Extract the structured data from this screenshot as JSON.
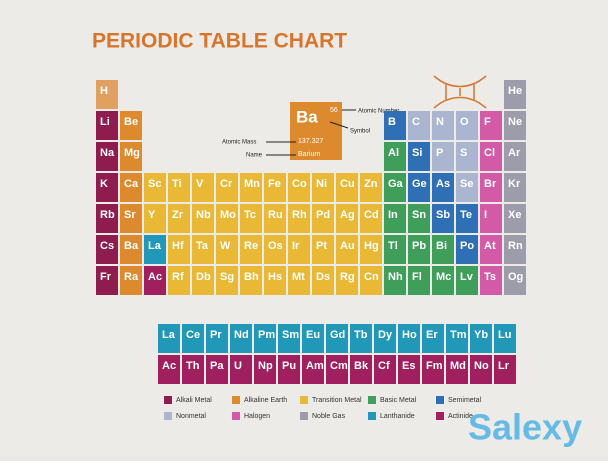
{
  "header": {
    "title": "PERIODIC TABLE CHART"
  },
  "key": {
    "symbol": "Ba",
    "number": "56",
    "mass": "137.327",
    "name": "Barium",
    "color": "#dd8a2e",
    "labels": {
      "number": "Atomic Number",
      "symbol": "Symbol",
      "mass": "Atomic Mass",
      "name": "Name"
    }
  },
  "table": {
    "rows": [
      [
        {
          "symbol": "H",
          "color": "#e0a060"
        },
        null,
        null,
        null,
        null,
        null,
        null,
        null,
        null,
        null,
        null,
        null,
        null,
        null,
        null,
        null,
        null,
        {
          "symbol": "He",
          "color": "#9c9cab"
        }
      ],
      [
        {
          "symbol": "Li",
          "color": "#8e1c4e"
        },
        {
          "symbol": "Be",
          "color": "#dd8a2e"
        },
        null,
        null,
        null,
        null,
        null,
        null,
        null,
        null,
        null,
        null,
        {
          "symbol": "B",
          "color": "#2f6fb5"
        },
        {
          "symbol": "C",
          "color": "#aab6cf"
        },
        {
          "symbol": "N",
          "color": "#aab6cf"
        },
        {
          "symbol": "O",
          "color": "#aab6cf"
        },
        {
          "symbol": "F",
          "color": "#d35aa6"
        },
        {
          "symbol": "Ne",
          "color": "#9c9cab"
        }
      ],
      [
        {
          "symbol": "Na",
          "color": "#8e1c4e"
        },
        {
          "symbol": "Mg",
          "color": "#dd8a2e"
        },
        null,
        null,
        null,
        null,
        null,
        null,
        null,
        null,
        null,
        null,
        {
          "symbol": "Al",
          "color": "#3f9e5a"
        },
        {
          "symbol": "Si",
          "color": "#2f6fb5"
        },
        {
          "symbol": "P",
          "color": "#aab6cf"
        },
        {
          "symbol": "S",
          "color": "#aab6cf"
        },
        {
          "symbol": "Cl",
          "color": "#d35aa6"
        },
        {
          "symbol": "Ar",
          "color": "#9c9cab"
        }
      ],
      [
        {
          "symbol": "K",
          "color": "#8e1c4e"
        },
        {
          "symbol": "Ca",
          "color": "#dd8a2e"
        },
        {
          "symbol": "Sc",
          "color": "#e9b834"
        },
        {
          "symbol": "Ti",
          "color": "#e9b834"
        },
        {
          "symbol": "V",
          "color": "#e9b834"
        },
        {
          "symbol": "Cr",
          "color": "#e9b834"
        },
        {
          "symbol": "Mn",
          "color": "#e9b834"
        },
        {
          "symbol": "Fe",
          "color": "#e9b834"
        },
        {
          "symbol": "Co",
          "color": "#e9b834"
        },
        {
          "symbol": "Ni",
          "color": "#e9b834"
        },
        {
          "symbol": "Cu",
          "color": "#e9b834"
        },
        {
          "symbol": "Zn",
          "color": "#e9b834"
        },
        {
          "symbol": "Ga",
          "color": "#3f9e5a"
        },
        {
          "symbol": "Ge",
          "color": "#2f6fb5"
        },
        {
          "symbol": "As",
          "color": "#2f6fb5"
        },
        {
          "symbol": "Se",
          "color": "#aab6cf"
        },
        {
          "symbol": "Br",
          "color": "#d35aa6"
        },
        {
          "symbol": "Kr",
          "color": "#9c9cab"
        }
      ],
      [
        {
          "symbol": "Rb",
          "color": "#8e1c4e"
        },
        {
          "symbol": "Sr",
          "color": "#dd8a2e"
        },
        {
          "symbol": "Y",
          "color": "#e9b834"
        },
        {
          "symbol": "Zr",
          "color": "#e9b834"
        },
        {
          "symbol": "Nb",
          "color": "#e9b834"
        },
        {
          "symbol": "Mo",
          "color": "#e9b834"
        },
        {
          "symbol": "Tc",
          "color": "#e9b834"
        },
        {
          "symbol": "Ru",
          "color": "#e9b834"
        },
        {
          "symbol": "Rh",
          "color": "#e9b834"
        },
        {
          "symbol": "Pd",
          "color": "#e9b834"
        },
        {
          "symbol": "Ag",
          "color": "#e9b834"
        },
        {
          "symbol": "Cd",
          "color": "#e9b834"
        },
        {
          "symbol": "In",
          "color": "#3f9e5a"
        },
        {
          "symbol": "Sn",
          "color": "#3f9e5a"
        },
        {
          "symbol": "Sb",
          "color": "#2f6fb5"
        },
        {
          "symbol": "Te",
          "color": "#2f6fb5"
        },
        {
          "symbol": "I",
          "color": "#d35aa6"
        },
        {
          "symbol": "Xe",
          "color": "#9c9cab"
        }
      ],
      [
        {
          "symbol": "Cs",
          "color": "#8e1c4e"
        },
        {
          "symbol": "Ba",
          "color": "#dd8a2e"
        },
        {
          "symbol": "La",
          "color": "#2198b8"
        },
        {
          "symbol": "Hf",
          "color": "#e9b834"
        },
        {
          "symbol": "Ta",
          "color": "#e9b834"
        },
        {
          "symbol": "W",
          "color": "#e9b834"
        },
        {
          "symbol": "Re",
          "color": "#e9b834"
        },
        {
          "symbol": "Os",
          "color": "#e9b834"
        },
        {
          "symbol": "Ir",
          "color": "#e9b834"
        },
        {
          "symbol": "Pt",
          "color": "#e9b834"
        },
        {
          "symbol": "Au",
          "color": "#e9b834"
        },
        {
          "symbol": "Hg",
          "color": "#e9b834"
        },
        {
          "symbol": "Tl",
          "color": "#3f9e5a"
        },
        {
          "symbol": "Pb",
          "color": "#3f9e5a"
        },
        {
          "symbol": "Bi",
          "color": "#3f9e5a"
        },
        {
          "symbol": "Po",
          "color": "#2f6fb5"
        },
        {
          "symbol": "At",
          "color": "#d35aa6"
        },
        {
          "symbol": "Rn",
          "color": "#9c9cab"
        }
      ],
      [
        {
          "symbol": "Fr",
          "color": "#8e1c4e"
        },
        {
          "symbol": "Ra",
          "color": "#dd8a2e"
        },
        {
          "symbol": "Ac",
          "color": "#a01f5e"
        },
        {
          "symbol": "Rf",
          "color": "#e9b834"
        },
        {
          "symbol": "Db",
          "color": "#e9b834"
        },
        {
          "symbol": "Sg",
          "color": "#e9b834"
        },
        {
          "symbol": "Bh",
          "color": "#e9b834"
        },
        {
          "symbol": "Hs",
          "color": "#e9b834"
        },
        {
          "symbol": "Mt",
          "color": "#e9b834"
        },
        {
          "symbol": "Ds",
          "color": "#e9b834"
        },
        {
          "symbol": "Rg",
          "color": "#e9b834"
        },
        {
          "symbol": "Cn",
          "color": "#e9b834"
        },
        {
          "symbol": "Nh",
          "color": "#3f9e5a"
        },
        {
          "symbol": "Fl",
          "color": "#3f9e5a"
        },
        {
          "symbol": "Mc",
          "color": "#3f9e5a"
        },
        {
          "symbol": "Lv",
          "color": "#3f9e5a"
        },
        {
          "symbol": "Ts",
          "color": "#d35aa6"
        },
        {
          "symbol": "Og",
          "color": "#9c9cab"
        }
      ]
    ],
    "f_rows": [
      [
        {
          "symbol": "La",
          "color": "#2198b8"
        },
        {
          "symbol": "Ce",
          "color": "#2198b8"
        },
        {
          "symbol": "Pr",
          "color": "#2198b8"
        },
        {
          "symbol": "Nd",
          "color": "#2198b8"
        },
        {
          "symbol": "Pm",
          "color": "#2198b8"
        },
        {
          "symbol": "Sm",
          "color": "#2198b8"
        },
        {
          "symbol": "Eu",
          "color": "#2198b8"
        },
        {
          "symbol": "Gd",
          "color": "#2198b8"
        },
        {
          "symbol": "Tb",
          "color": "#2198b8"
        },
        {
          "symbol": "Dy",
          "color": "#2198b8"
        },
        {
          "symbol": "Ho",
          "color": "#2198b8"
        },
        {
          "symbol": "Er",
          "color": "#2198b8"
        },
        {
          "symbol": "Tm",
          "color": "#2198b8"
        },
        {
          "symbol": "Yb",
          "color": "#2198b8"
        },
        {
          "symbol": "Lu",
          "color": "#2198b8"
        }
      ],
      [
        {
          "symbol": "Ac",
          "color": "#a01f5e"
        },
        {
          "symbol": "Th",
          "color": "#a01f5e"
        },
        {
          "symbol": "Pa",
          "color": "#a01f5e"
        },
        {
          "symbol": "U",
          "color": "#a01f5e"
        },
        {
          "symbol": "Np",
          "color": "#a01f5e"
        },
        {
          "symbol": "Pu",
          "color": "#a01f5e"
        },
        {
          "symbol": "Am",
          "color": "#a01f5e"
        },
        {
          "symbol": "Cm",
          "color": "#a01f5e"
        },
        {
          "symbol": "Bk",
          "color": "#a01f5e"
        },
        {
          "symbol": "Cf",
          "color": "#a01f5e"
        },
        {
          "symbol": "Es",
          "color": "#a01f5e"
        },
        {
          "symbol": "Fm",
          "color": "#a01f5e"
        },
        {
          "symbol": "Md",
          "color": "#a01f5e"
        },
        {
          "symbol": "No",
          "color": "#a01f5e"
        },
        {
          "symbol": "Lr",
          "color": "#a01f5e"
        }
      ]
    ]
  },
  "legend": [
    {
      "label": "Alkali Metal",
      "color": "#8e1c4e"
    },
    {
      "label": "Nonmetal",
      "color": "#aab6cf"
    },
    {
      "label": "Alkaline Earth",
      "color": "#dd8a2e"
    },
    {
      "label": "Halogen",
      "color": "#d35aa6"
    },
    {
      "label": "Transition Metal",
      "color": "#e9b834"
    },
    {
      "label": "Noble Gas",
      "color": "#9c9cab"
    },
    {
      "label": "Basic Metal",
      "color": "#3f9e5a"
    },
    {
      "label": "Lanthanide",
      "color": "#2198b8"
    },
    {
      "label": "Semimetal",
      "color": "#2f6fb5"
    },
    {
      "label": "Actinide",
      "color": "#a01f5e"
    }
  ],
  "watermark": "Salexy"
}
